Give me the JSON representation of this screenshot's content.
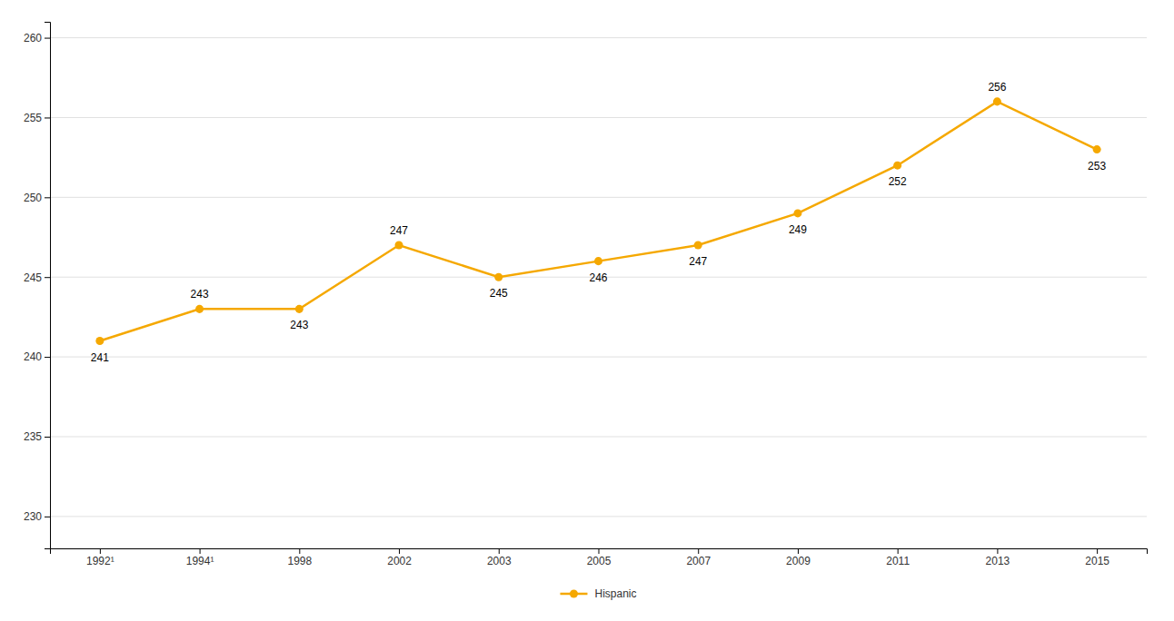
{
  "chart_data": {
    "type": "line",
    "categories": [
      "1992¹",
      "1994¹",
      "1998",
      "2002",
      "2003",
      "2005",
      "2007",
      "2009",
      "2011",
      "2013",
      "2015"
    ],
    "series": [
      {
        "name": "Hispanic",
        "color": "#F5A800",
        "marker": "circle",
        "values": [
          241,
          243,
          243,
          247,
          245,
          246,
          247,
          249,
          252,
          256,
          253
        ]
      }
    ],
    "ylim": [
      228,
      261
    ],
    "yticks": [
      230,
      235,
      240,
      245,
      250,
      255,
      260
    ],
    "grid": true,
    "data_labels": true,
    "legend": "bottom"
  }
}
